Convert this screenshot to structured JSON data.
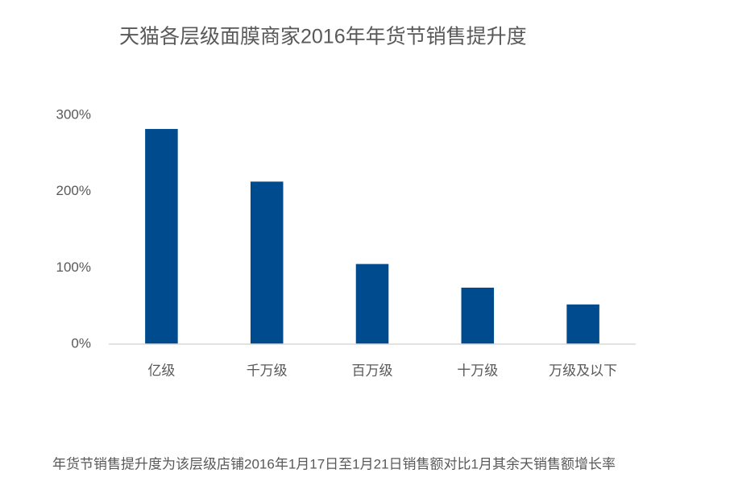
{
  "chart_data": {
    "type": "bar",
    "title": "天猫各层级面膜商家2016年年货节销售提升度",
    "categories": [
      "亿级",
      "千万级",
      "百万级",
      "十万级",
      "万级及以下"
    ],
    "values": [
      282,
      213,
      105,
      74,
      52
    ],
    "color": "#004b8d",
    "ylim": [
      0,
      300
    ],
    "yticks": [
      {
        "value": 0,
        "label": "0%"
      },
      {
        "value": 100,
        "label": "100%"
      },
      {
        "value": 200,
        "label": "200%"
      },
      {
        "value": 300,
        "label": "300%"
      }
    ],
    "grid": false,
    "note": "年货节销售提升度为该层级店铺2016年1月17日至1月21日销售额对比1月其余天销售额增长率"
  }
}
